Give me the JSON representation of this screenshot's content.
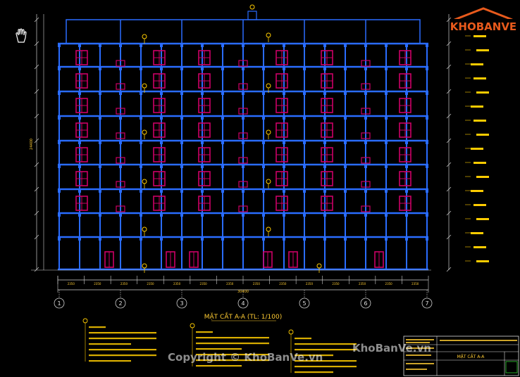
{
  "drawing": {
    "title": "MẶT CẮT A-A (TL: 1/100)",
    "axes": [
      "1",
      "2",
      "3",
      "4",
      "5",
      "6",
      "7"
    ],
    "total_dim": "30400",
    "height_dim": "24400",
    "bay_dims": [
      "2350",
      "2350",
      "2350",
      "2350",
      "2350",
      "2350",
      "2350",
      "2350",
      "2350",
      "2350",
      "2350",
      "2350",
      "2350",
      "2350"
    ]
  },
  "titleblock": {
    "sheet_title": "MẶT CẮT A-A"
  },
  "logo": {
    "brand": "KHOBANVE"
  },
  "watermarks": {
    "copyright": "Copyright © KhoBanVe.vn",
    "site": "KhoBanVe.vn"
  },
  "colors": {
    "frame": "#2a6cff",
    "window": "#cc0066",
    "annotation": "#ffcc00",
    "dimension": "#cfcfcf"
  }
}
